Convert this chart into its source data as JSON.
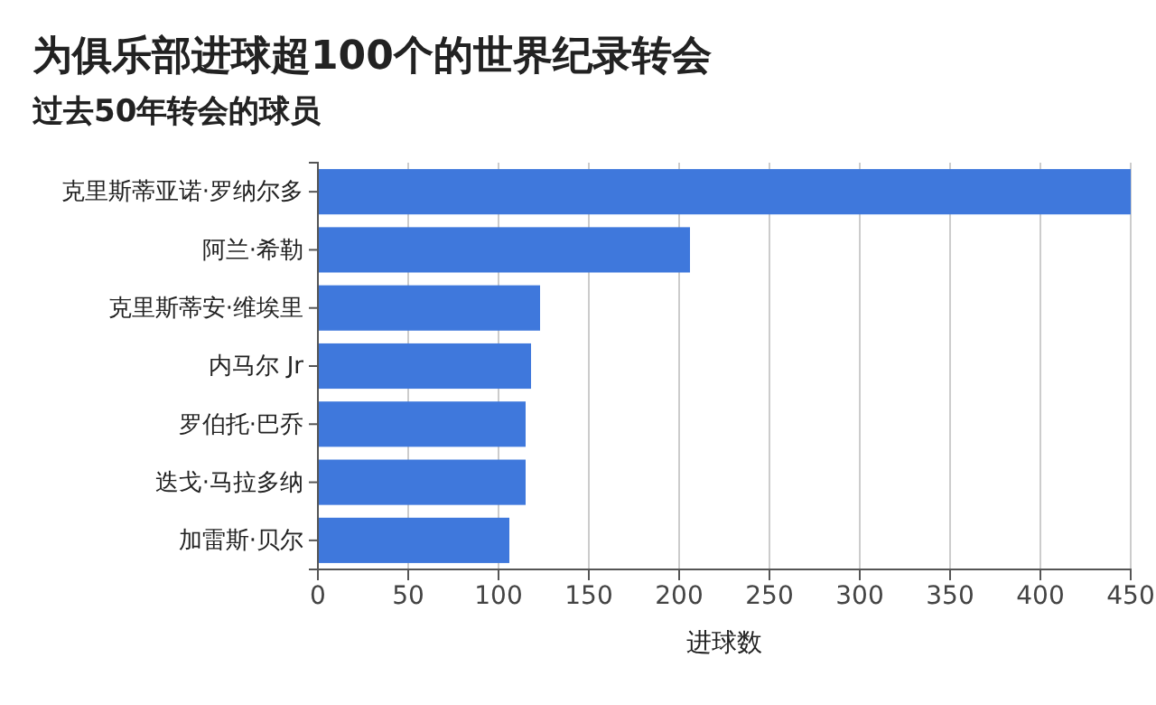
{
  "chart_data": {
    "type": "bar",
    "orientation": "horizontal",
    "title": "为俱乐部进球超100个的世界纪录转会",
    "subtitle": "过去50年转会的球员",
    "xlabel": "进球数",
    "categories": [
      "克里斯蒂亚诺·罗纳尔多",
      "阿兰·希勒",
      "克里斯蒂安·维埃里",
      "内马尔 Jr",
      "罗伯托·巴乔",
      "迭戈·马拉多纳",
      "加雷斯·贝尔"
    ],
    "values": [
      450,
      206,
      123,
      118,
      115,
      115,
      106
    ],
    "color": "#3f78dc",
    "xlim": [
      0,
      450
    ],
    "xticks": [
      0,
      50,
      100,
      150,
      200,
      250,
      300,
      350,
      400,
      450
    ],
    "grid": "x"
  }
}
